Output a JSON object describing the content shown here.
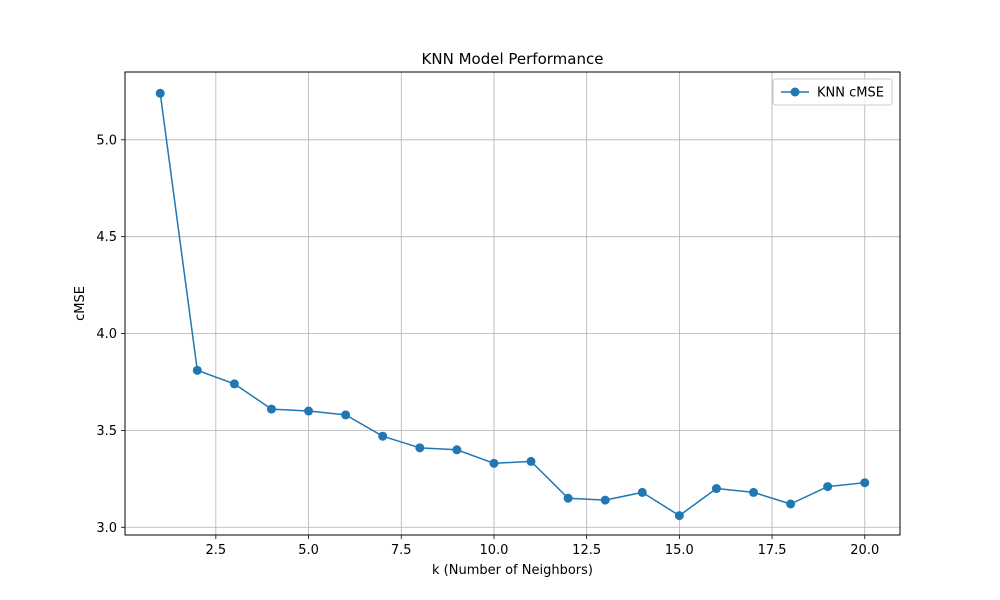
{
  "chart_data": {
    "type": "line",
    "title": "KNN Model Performance",
    "xlabel": "k (Number of Neighbors)",
    "ylabel": "cMSE",
    "xlim": [
      0.05,
      20.95
    ],
    "ylim": [
      2.96,
      5.35
    ],
    "xticks": [
      2.5,
      5.0,
      7.5,
      10.0,
      12.5,
      15.0,
      17.5,
      20.0
    ],
    "xtick_labels": [
      "2.5",
      "5.0",
      "7.5",
      "10.0",
      "12.5",
      "15.0",
      "17.5",
      "20.0"
    ],
    "yticks": [
      3.0,
      3.5,
      4.0,
      4.5,
      5.0
    ],
    "ytick_labels": [
      "3.0",
      "3.5",
      "4.0",
      "4.5",
      "5.0"
    ],
    "grid": true,
    "legend_position": "top-right",
    "series": [
      {
        "name": "KNN cMSE",
        "color": "#1f77b4",
        "marker": "circle",
        "x": [
          1,
          2,
          3,
          4,
          5,
          6,
          7,
          8,
          9,
          10,
          11,
          12,
          13,
          14,
          15,
          16,
          17,
          18,
          19,
          20
        ],
        "y": [
          5.24,
          3.81,
          3.74,
          3.61,
          3.6,
          3.58,
          3.47,
          3.41,
          3.4,
          3.33,
          3.34,
          3.15,
          3.14,
          3.18,
          3.06,
          3.2,
          3.18,
          3.12,
          3.21,
          3.23
        ]
      }
    ]
  }
}
